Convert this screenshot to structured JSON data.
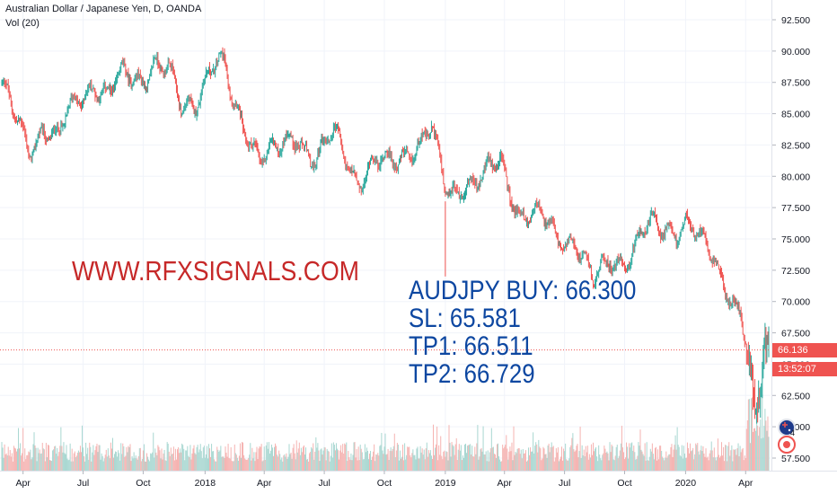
{
  "header": {
    "symbol": "Australian Dollar / Japanese Yen, D, OANDA",
    "indicator": "Vol (20)"
  },
  "annotations": {
    "website": "WWW.RFXSIGNALS.COM",
    "lines": [
      "AUDJPY BUY: 66.300",
      "SL: 65.581",
      "TP1: 66.511",
      "TP2: 66.729"
    ]
  },
  "price_axis": {
    "last_price": "66.136",
    "countdown": "13:52:07",
    "badge_count": "4"
  },
  "colors": {
    "up": "#26a69a",
    "down": "#ef5350",
    "vol_up": "#a8d7d1",
    "vol_down": "#f5b3b1",
    "website_text": "#c62828",
    "signal_text": "#0d47a1",
    "grid": "#f0f3fa",
    "last_price_tag": "#ef5350",
    "axis_text": "#131722"
  },
  "chart_data": {
    "type": "candlestick",
    "title": "Australian Dollar / Japanese Yen, D, OANDA",
    "ylim": [
      56.5,
      92.5
    ],
    "y_ticks": [
      57.5,
      60.0,
      62.5,
      65.0,
      67.5,
      70.0,
      72.5,
      75.0,
      77.5,
      80.0,
      82.5,
      85.0,
      87.5,
      90.0,
      92.5
    ],
    "y_tick_labels": [
      "57.500",
      "60.000",
      "62.500",
      "65.000",
      "67.500",
      "70.000",
      "72.500",
      "75.000",
      "77.500",
      "80.000",
      "82.500",
      "85.000",
      "87.500",
      "90.000",
      "92.500"
    ],
    "x_tick_labels": [
      "Apr",
      "Jul",
      "Oct",
      "2018",
      "Apr",
      "Jul",
      "Oct",
      "2019",
      "Apr",
      "Jul",
      "Oct",
      "2020",
      "Apr"
    ],
    "x_tick_index": [
      23,
      88,
      153,
      220,
      284,
      349,
      414,
      480,
      544,
      609,
      674,
      740,
      805
    ],
    "price_path_index": [
      0,
      15,
      30,
      45,
      60,
      80,
      100,
      115,
      130,
      150,
      165,
      180,
      195,
      210,
      225,
      240,
      250,
      265,
      280,
      300,
      320,
      340,
      360,
      385,
      400,
      420,
      440,
      465,
      480,
      485,
      500,
      520,
      540,
      560,
      580,
      600,
      620,
      640,
      660,
      680,
      700,
      720,
      740,
      755,
      770,
      785,
      800,
      810,
      815,
      820,
      823,
      826,
      830
    ],
    "price_path": [
      87.5,
      84.0,
      82.0,
      84.5,
      83.0,
      85.5,
      88.0,
      86.5,
      87.5,
      88.0,
      89.5,
      88.0,
      85.0,
      86.5,
      89.0,
      88.5,
      85.5,
      84.0,
      82.0,
      81.5,
      83.5,
      81.5,
      83.0,
      80.0,
      81.0,
      80.5,
      82.5,
      83.5,
      78.5,
      78.5,
      80.0,
      79.5,
      81.0,
      77.5,
      76.5,
      75.0,
      75.5,
      71.0,
      73.5,
      74.0,
      75.5,
      76.0,
      76.5,
      74.5,
      73.5,
      71.5,
      69.0,
      64.0,
      60.5,
      62.0,
      65.0,
      66.5,
      66.13
    ],
    "candle_count": 831,
    "last_price": 66.136,
    "current_price_line": 66.136
  }
}
